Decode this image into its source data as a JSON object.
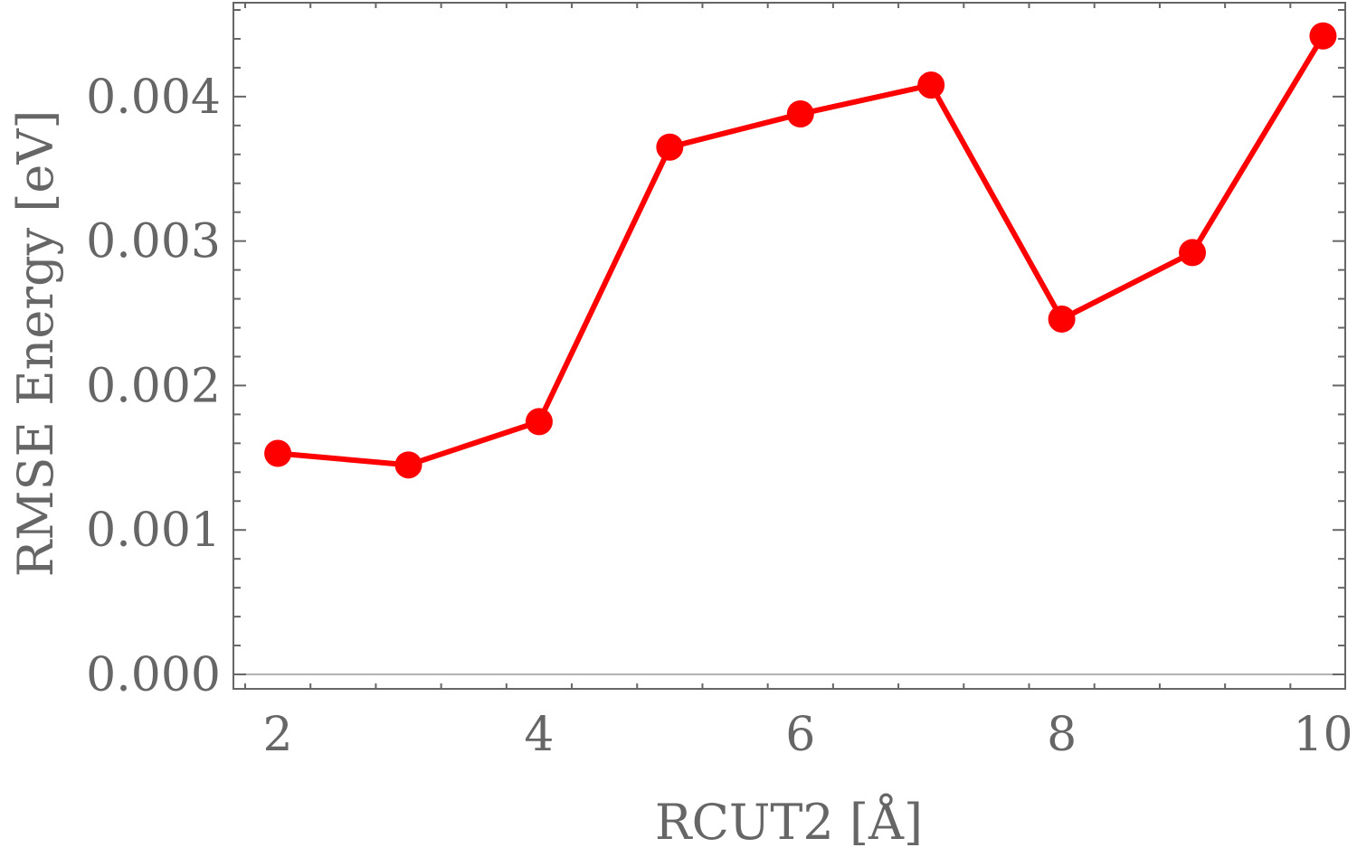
{
  "chart_data": {
    "type": "line",
    "title": "",
    "xlabel": "RCUT2 [Å]",
    "ylabel": "RMSE Energy [eV]",
    "x": [
      2,
      3,
      4,
      5,
      6,
      7,
      8,
      9,
      10
    ],
    "series": [
      {
        "values": [
          0.00153,
          0.00145,
          0.00175,
          0.00365,
          0.00388,
          0.00408,
          0.00246,
          0.00292,
          0.00442
        ],
        "color": "#ff0000"
      }
    ],
    "xlim": [
      1.66,
      10.17
    ],
    "ylim": [
      -0.0001,
      0.00465
    ],
    "x_ticks": [
      "2",
      "4",
      "6",
      "8",
      "10"
    ],
    "x_tick_values": [
      2,
      4,
      6,
      8,
      10
    ],
    "y_ticks": [
      "0.000",
      "0.001",
      "0.002",
      "0.003",
      "0.004"
    ],
    "y_tick_values": [
      0,
      0.001,
      0.002,
      0.003,
      0.004
    ],
    "grid": false,
    "frame_color": "#666666",
    "marker": "circle"
  }
}
